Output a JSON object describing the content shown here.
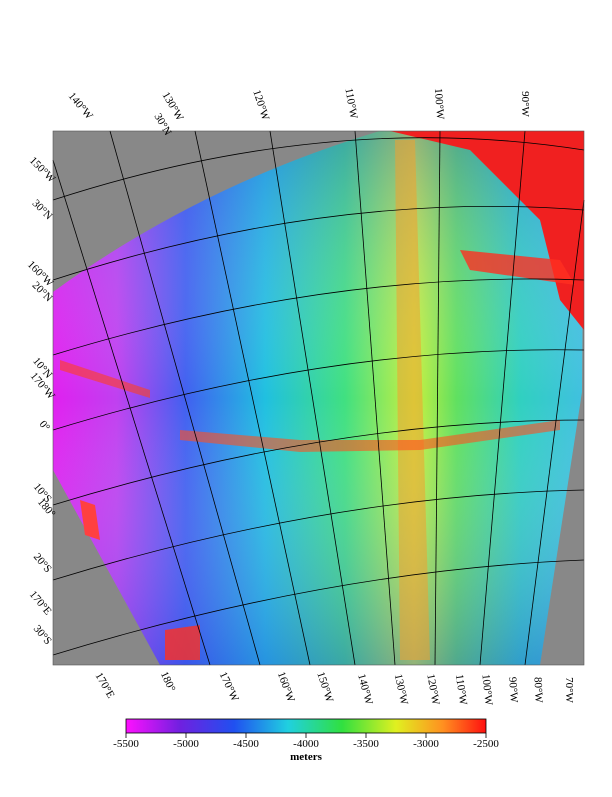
{
  "graticule_labels": {
    "top": [
      "140°W",
      "130°W",
      "30°N",
      "120°W",
      "110°W",
      "100°W",
      "90°W"
    ],
    "left": [
      "150°W",
      "30°N",
      "160°W",
      "20°N",
      "10°N",
      "170°W",
      "0°",
      "10°S",
      "180°",
      "20°S",
      "170°E",
      "30°S"
    ],
    "bottom": [
      "170°E",
      "180°",
      "170°W",
      "160°W",
      "150°W",
      "140°W",
      "130°W",
      "120°W",
      "110°W",
      "100°W",
      "90°W",
      "80°W",
      "70°W"
    ]
  },
  "colorbar": {
    "lim": [
      -5500,
      -2500
    ],
    "ticks": [
      -5500,
      -5000,
      -4500,
      -4000,
      -3500,
      -3000,
      -2500
    ],
    "label": "meters"
  }
}
